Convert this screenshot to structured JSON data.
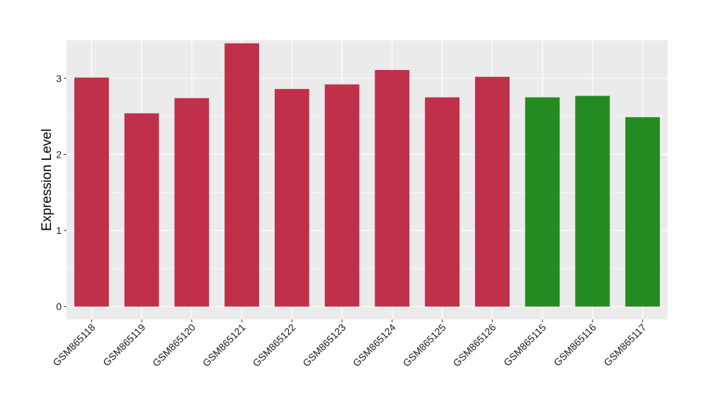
{
  "chart_data": {
    "type": "bar",
    "title": "",
    "xlabel": "",
    "ylabel": "Expression Level",
    "categories": [
      "GSM865118",
      "GSM865119",
      "GSM865120",
      "GSM865121",
      "GSM865122",
      "GSM865123",
      "GSM865124",
      "GSM865125",
      "GSM865126",
      "GSM865115",
      "GSM865116",
      "GSM865117"
    ],
    "values": [
      3.01,
      2.54,
      2.74,
      3.46,
      2.86,
      2.92,
      3.11,
      2.75,
      3.02,
      2.75,
      2.77,
      2.49
    ],
    "groups": [
      "red",
      "red",
      "red",
      "red",
      "red",
      "red",
      "red",
      "red",
      "red",
      "green",
      "green",
      "green"
    ],
    "colors": {
      "red": "#c0304a",
      "green": "#238b22"
    },
    "ylim": [
      -0.17,
      3.5
    ],
    "yticks": [
      0,
      1,
      2,
      3
    ],
    "grid": true,
    "panel_background": "#ebebeb",
    "grid_color": "#ffffff"
  }
}
